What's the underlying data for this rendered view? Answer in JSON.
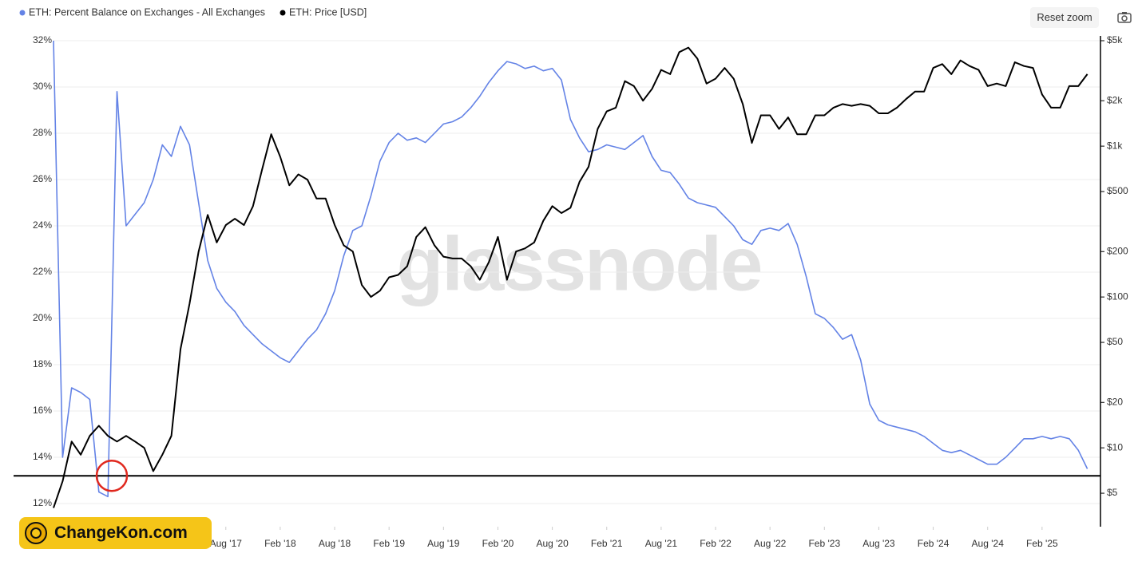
{
  "chart_data": {
    "type": "line",
    "legend": [
      "ETH: Percent Balance on Exchanges - All Exchanges",
      "ETH: Price [USD]"
    ],
    "x": [
      "2016-01",
      "2016-02",
      "2016-03",
      "2016-04",
      "2016-05",
      "2016-06",
      "2016-07",
      "2016-08",
      "2016-09",
      "2016-10",
      "2016-11",
      "2016-12",
      "2017-01",
      "2017-02",
      "2017-03",
      "2017-04",
      "2017-05",
      "2017-06",
      "2017-07",
      "2017-08",
      "2017-09",
      "2017-10",
      "2017-11",
      "2017-12",
      "2018-01",
      "2018-02",
      "2018-03",
      "2018-04",
      "2018-05",
      "2018-06",
      "2018-07",
      "2018-08",
      "2018-09",
      "2018-10",
      "2018-11",
      "2018-12",
      "2019-01",
      "2019-02",
      "2019-03",
      "2019-04",
      "2019-05",
      "2019-06",
      "2019-07",
      "2019-08",
      "2019-09",
      "2019-10",
      "2019-11",
      "2019-12",
      "2020-01",
      "2020-02",
      "2020-03",
      "2020-04",
      "2020-05",
      "2020-06",
      "2020-07",
      "2020-08",
      "2020-09",
      "2020-10",
      "2020-11",
      "2020-12",
      "2021-01",
      "2021-02",
      "2021-03",
      "2021-04",
      "2021-05",
      "2021-06",
      "2021-07",
      "2021-08",
      "2021-09",
      "2021-10",
      "2021-11",
      "2021-12",
      "2022-01",
      "2022-02",
      "2022-03",
      "2022-04",
      "2022-05",
      "2022-06",
      "2022-07",
      "2022-08",
      "2022-09",
      "2022-10",
      "2022-11",
      "2022-12",
      "2023-01",
      "2023-02",
      "2023-03",
      "2023-04",
      "2023-05",
      "2023-06",
      "2023-07",
      "2023-08",
      "2023-09",
      "2023-10",
      "2023-11",
      "2023-12",
      "2024-01",
      "2024-02",
      "2024-03",
      "2024-04",
      "2024-05",
      "2024-06",
      "2024-07",
      "2024-08",
      "2024-09",
      "2024-10",
      "2024-11",
      "2024-12",
      "2025-01",
      "2025-02",
      "2025-03",
      "2025-04",
      "2025-05",
      "2025-06",
      "2025-07"
    ],
    "series": [
      {
        "name": "ETH: Percent Balance on Exchanges - All Exchanges",
        "color": "#6483e6",
        "axis": "y",
        "values": [
          32,
          14,
          17,
          16.8,
          16.5,
          12.5,
          12.3,
          29.8,
          24,
          24.5,
          25,
          26,
          27.5,
          27,
          28.3,
          27.5,
          25,
          22.5,
          21.3,
          20.7,
          20.3,
          19.7,
          19.3,
          18.9,
          18.6,
          18.3,
          18.1,
          18.6,
          19.1,
          19.5,
          20.2,
          21.2,
          22.7,
          23.8,
          24,
          25.3,
          26.8,
          27.6,
          28,
          27.7,
          27.8,
          27.6,
          28,
          28.4,
          28.5,
          28.7,
          29.1,
          29.6,
          30.2,
          30.7,
          31.1,
          31,
          30.8,
          30.9,
          30.7,
          30.8,
          30.3,
          28.6,
          27.8,
          27.2,
          27.3,
          27.5,
          27.4,
          27.3,
          27.6,
          27.9,
          27,
          26.4,
          26.3,
          25.8,
          25.2,
          25,
          24.9,
          24.8,
          24.4,
          24,
          23.4,
          23.2,
          23.8,
          23.9,
          23.8,
          24.1,
          23.2,
          21.8,
          20.2,
          20,
          19.6,
          19.1,
          19.3,
          18.2,
          16.3,
          15.6,
          15.4,
          15.3,
          15.2,
          15.1,
          14.9,
          14.6,
          14.3,
          14.2,
          14.3,
          14.1,
          13.9,
          13.7,
          13.7,
          14,
          14.4,
          14.8,
          14.8,
          14.9,
          14.8,
          14.9,
          14.8,
          14.3,
          13.5
        ]
      },
      {
        "name": "ETH: Price [USD]",
        "color": "#000000",
        "axis": "y2",
        "values": [
          4,
          6,
          11,
          9,
          12,
          14,
          12,
          11,
          12,
          11,
          10,
          7,
          9,
          12,
          45,
          90,
          200,
          350,
          230,
          300,
          330,
          300,
          400,
          700,
          1200,
          850,
          550,
          650,
          600,
          450,
          450,
          300,
          220,
          200,
          120,
          100,
          110,
          135,
          140,
          160,
          250,
          290,
          220,
          185,
          180,
          180,
          160,
          130,
          170,
          250,
          130,
          200,
          210,
          230,
          320,
          400,
          360,
          390,
          580,
          730,
          1300,
          1700,
          1800,
          2700,
          2500,
          2000,
          2400,
          3200,
          3000,
          4200,
          4500,
          3800,
          2600,
          2800,
          3300,
          2800,
          1900,
          1050,
          1600,
          1600,
          1300,
          1550,
          1200,
          1200,
          1600,
          1600,
          1800,
          1900,
          1850,
          1900,
          1850,
          1650,
          1650,
          1800,
          2050,
          2300,
          2300,
          3300,
          3500,
          3000,
          3700,
          3400,
          3200,
          2500,
          2600,
          2500,
          3600,
          3400,
          3300,
          2200,
          1800,
          1800,
          2500,
          2500,
          3000
        ]
      }
    ],
    "xlim": [
      "2016-01",
      "2025-08"
    ],
    "xticks": [
      {
        "value": "2017-08",
        "label": "Aug '17"
      },
      {
        "value": "2018-02",
        "label": "Feb '18"
      },
      {
        "value": "2018-08",
        "label": "Aug '18"
      },
      {
        "value": "2019-02",
        "label": "Feb '19"
      },
      {
        "value": "2019-08",
        "label": "Aug '19"
      },
      {
        "value": "2020-02",
        "label": "Feb '20"
      },
      {
        "value": "2020-08",
        "label": "Aug '20"
      },
      {
        "value": "2021-02",
        "label": "Feb '21"
      },
      {
        "value": "2021-08",
        "label": "Aug '21"
      },
      {
        "value": "2022-02",
        "label": "Feb '22"
      },
      {
        "value": "2022-08",
        "label": "Aug '22"
      },
      {
        "value": "2023-02",
        "label": "Feb '23"
      },
      {
        "value": "2023-08",
        "label": "Aug '23"
      },
      {
        "value": "2024-02",
        "label": "Feb '24"
      },
      {
        "value": "2024-08",
        "label": "Aug '24"
      },
      {
        "value": "2025-02",
        "label": "Feb '25"
      }
    ],
    "ylim": [
      11,
      32
    ],
    "yticks": [
      {
        "value": 12,
        "label": "12%"
      },
      {
        "value": 14,
        "label": "14%"
      },
      {
        "value": 16,
        "label": "16%"
      },
      {
        "value": 18,
        "label": "18%"
      },
      {
        "value": 20,
        "label": "20%"
      },
      {
        "value": 22,
        "label": "22%"
      },
      {
        "value": 24,
        "label": "24%"
      },
      {
        "value": 26,
        "label": "26%"
      },
      {
        "value": 28,
        "label": "28%"
      },
      {
        "value": 30,
        "label": "30%"
      },
      {
        "value": 32,
        "label": "32%"
      }
    ],
    "y2lim": [
      3,
      5000
    ],
    "y2_scale": "log",
    "y2ticks": [
      {
        "value": 5,
        "label": "$5"
      },
      {
        "value": 10,
        "label": "$10"
      },
      {
        "value": 20,
        "label": "$20"
      },
      {
        "value": 50,
        "label": "$50"
      },
      {
        "value": 100,
        "label": "$100"
      },
      {
        "value": 200,
        "label": "$200"
      },
      {
        "value": 500,
        "label": "$500"
      },
      {
        "value": 1000,
        "label": "$1k"
      },
      {
        "value": 2000,
        "label": "$2k"
      },
      {
        "value": 5000,
        "label": "$5k"
      }
    ],
    "grid": true,
    "reference_line": 13.2,
    "watermark": "glassnode"
  },
  "reset_zoom": "Reset zoom",
  "site_logo": "ChangeKon.com"
}
